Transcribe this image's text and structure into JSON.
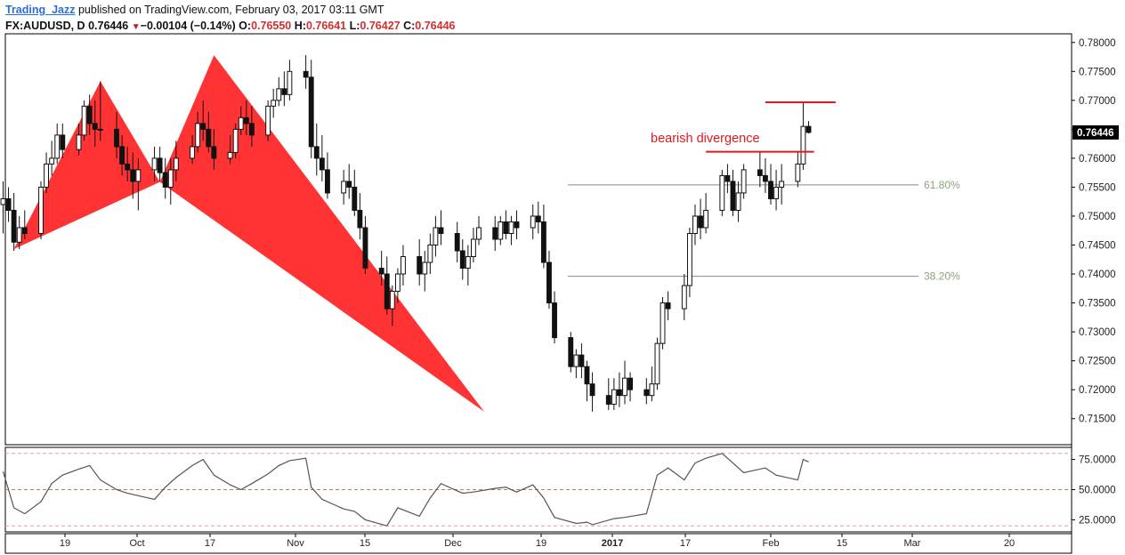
{
  "header": {
    "author": "Trading_Jazz",
    "published_text": "published on TradingView.com, February 03, 2017 03:11 GMT",
    "symbol": "FX:AUDUSD, D",
    "last": "0.76446",
    "change": "−0.00104 (−0.14%)",
    "o_label": "O:",
    "o": "0.76550",
    "h_label": "H:",
    "h": "0.76641",
    "l_label": "L:",
    "l": "0.76427",
    "c_label": "C:",
    "c": "0.76446"
  },
  "colors": {
    "harmonic_fill": "#ff3333",
    "level_line": "#e0191e",
    "fib_line": "#8a8a8a",
    "fib_text": "#8aa37a",
    "candle": "#111111",
    "rsi_line": "#555555",
    "rsi_band": "#e0a0a0",
    "rsi_mid": "#c87a3a"
  },
  "chart_data": [
    {
      "type": "candlestick",
      "title": "FX:AUDUSD, D",
      "y_ticks": [
        "0.78000",
        "0.77500",
        "0.77000",
        "0.76500",
        "0.76000",
        "0.75500",
        "0.75000",
        "0.74500",
        "0.74000",
        "0.73500",
        "0.73000",
        "0.72500",
        "0.72000",
        "0.71500"
      ],
      "ylim": [
        0.7105,
        0.7815
      ],
      "x_ticks": [
        "19",
        "Oct",
        "17",
        "Nov",
        "15",
        "Dec",
        "19",
        "2017",
        "17",
        "Feb",
        "15",
        "Mar",
        "20"
      ],
      "x_range": [
        "2016-09-12",
        "2017-03-26"
      ],
      "last_price_label": "0.76446",
      "annotations": {
        "text": "bearish divergence",
        "fib_levels": [
          {
            "label": "61.80%",
            "price": 0.7554
          },
          {
            "label": "38.20%",
            "price": 0.7396
          }
        ],
        "resistance_lines": [
          {
            "price": 0.76966,
            "from": "2017-01-31",
            "to": "2017-02-13"
          },
          {
            "price": 0.76112,
            "from": "2017-01-20",
            "to": "2017-02-09"
          }
        ],
        "harmonic_pattern_points": [
          {
            "date": "2016-09-14",
            "price": 0.7443
          },
          {
            "date": "2016-09-30",
            "price": 0.7733
          },
          {
            "date": "2016-10-11",
            "price": 0.7559
          },
          {
            "date": "2016-10-21",
            "price": 0.7778
          },
          {
            "date": "2016-12-10",
            "price": 0.7162
          }
        ]
      },
      "ohlc": [
        [
          "2016-09-12",
          0.752,
          0.756,
          0.747,
          0.753
        ],
        [
          "2016-09-13",
          0.753,
          0.755,
          0.749,
          0.751
        ],
        [
          "2016-09-14",
          0.751,
          0.754,
          0.744,
          0.7455
        ],
        [
          "2016-09-15",
          0.7455,
          0.75,
          0.7443,
          0.748
        ],
        [
          "2016-09-16",
          0.748,
          0.751,
          0.746,
          0.747
        ],
        [
          "2016-09-19",
          0.747,
          0.756,
          0.746,
          0.755
        ],
        [
          "2016-09-20",
          0.755,
          0.761,
          0.754,
          0.759
        ],
        [
          "2016-09-21",
          0.759,
          0.763,
          0.757,
          0.76
        ],
        [
          "2016-09-22",
          0.76,
          0.766,
          0.759,
          0.764
        ],
        [
          "2016-09-23",
          0.764,
          0.766,
          0.76,
          0.7615
        ],
        [
          "2016-09-26",
          0.7615,
          0.766,
          0.7605,
          0.764
        ],
        [
          "2016-09-27",
          0.764,
          0.77,
          0.763,
          0.769
        ],
        [
          "2016-09-28",
          0.769,
          0.771,
          0.764,
          0.766
        ],
        [
          "2016-09-29",
          0.766,
          0.77,
          0.762,
          0.765
        ],
        [
          "2016-09-30",
          0.765,
          0.7733,
          0.763,
          0.765
        ],
        [
          "2016-10-03",
          0.765,
          0.768,
          0.76,
          0.762
        ],
        [
          "2016-10-04",
          0.762,
          0.764,
          0.757,
          0.759
        ],
        [
          "2016-10-05",
          0.759,
          0.762,
          0.756,
          0.758
        ],
        [
          "2016-10-06",
          0.758,
          0.761,
          0.753,
          0.756
        ],
        [
          "2016-10-07",
          0.756,
          0.76,
          0.751,
          0.758
        ],
        [
          "2016-10-10",
          0.758,
          0.762,
          0.756,
          0.76
        ],
        [
          "2016-10-11",
          0.76,
          0.762,
          0.756,
          0.7575
        ],
        [
          "2016-10-12",
          0.7575,
          0.76,
          0.753,
          0.755
        ],
        [
          "2016-10-13",
          0.755,
          0.76,
          0.752,
          0.758
        ],
        [
          "2016-10-14",
          0.758,
          0.763,
          0.756,
          0.76
        ],
        [
          "2016-10-17",
          0.76,
          0.764,
          0.759,
          0.762
        ],
        [
          "2016-10-18",
          0.762,
          0.768,
          0.761,
          0.766
        ],
        [
          "2016-10-19",
          0.766,
          0.77,
          0.763,
          0.765
        ],
        [
          "2016-10-20",
          0.765,
          0.768,
          0.761,
          0.762
        ],
        [
          "2016-10-21",
          0.762,
          0.765,
          0.758,
          0.76
        ],
        [
          "2016-10-24",
          0.76,
          0.764,
          0.759,
          0.761
        ],
        [
          "2016-10-25",
          0.761,
          0.766,
          0.76,
          0.765
        ],
        [
          "2016-10-26",
          0.765,
          0.769,
          0.764,
          0.767
        ],
        [
          "2016-10-27",
          0.767,
          0.77,
          0.764,
          0.766
        ],
        [
          "2016-10-28",
          0.766,
          0.769,
          0.762,
          0.764
        ],
        [
          "2016-10-31",
          0.764,
          0.77,
          0.763,
          0.769
        ],
        [
          "2016-11-01",
          0.769,
          0.772,
          0.767,
          0.77
        ],
        [
          "2016-11-02",
          0.77,
          0.774,
          0.769,
          0.772
        ],
        [
          "2016-11-03",
          0.772,
          0.775,
          0.769,
          0.771
        ],
        [
          "2016-11-04",
          0.771,
          0.777,
          0.77,
          0.775
        ],
        [
          "2016-11-07",
          0.775,
          0.7778,
          0.772,
          0.774
        ],
        [
          "2016-11-08",
          0.774,
          0.777,
          0.76,
          0.762
        ],
        [
          "2016-11-09",
          0.762,
          0.766,
          0.757,
          0.76
        ],
        [
          "2016-11-10",
          0.76,
          0.764,
          0.756,
          0.758
        ],
        [
          "2016-11-11",
          0.758,
          0.761,
          0.753,
          0.754
        ],
        [
          "2016-11-14",
          0.754,
          0.758,
          0.752,
          0.756
        ],
        [
          "2016-11-15",
          0.756,
          0.759,
          0.753,
          0.755
        ],
        [
          "2016-11-16",
          0.755,
          0.758,
          0.75,
          0.751
        ],
        [
          "2016-11-17",
          0.751,
          0.754,
          0.746,
          0.748
        ],
        [
          "2016-11-18",
          0.748,
          0.75,
          0.74,
          0.741
        ],
        [
          "2016-11-21",
          0.741,
          0.744,
          0.738,
          0.74
        ],
        [
          "2016-11-22",
          0.74,
          0.743,
          0.733,
          0.734
        ],
        [
          "2016-11-23",
          0.734,
          0.738,
          0.731,
          0.737
        ],
        [
          "2016-11-24",
          0.737,
          0.741,
          0.735,
          0.74
        ],
        [
          "2016-11-25",
          0.74,
          0.745,
          0.738,
          0.743
        ],
        [
          "2016-11-28",
          0.743,
          0.746,
          0.738,
          0.74
        ],
        [
          "2016-11-29",
          0.74,
          0.744,
          0.737,
          0.742
        ],
        [
          "2016-11-30",
          0.742,
          0.747,
          0.74,
          0.745
        ],
        [
          "2016-12-01",
          0.745,
          0.75,
          0.743,
          0.748
        ],
        [
          "2016-12-02",
          0.748,
          0.751,
          0.745,
          0.747
        ],
        [
          "2016-12-05",
          0.747,
          0.749,
          0.742,
          0.744
        ],
        [
          "2016-12-06",
          0.744,
          0.746,
          0.739,
          0.741
        ],
        [
          "2016-12-07",
          0.741,
          0.745,
          0.738,
          0.743
        ],
        [
          "2016-12-08",
          0.743,
          0.748,
          0.742,
          0.746
        ],
        [
          "2016-12-09",
          0.746,
          0.75,
          0.745,
          0.748
        ],
        [
          "2016-12-12",
          0.748,
          0.75,
          0.744,
          0.746
        ],
        [
          "2016-12-13",
          0.746,
          0.75,
          0.745,
          0.749
        ],
        [
          "2016-12-14",
          0.749,
          0.751,
          0.746,
          0.747
        ],
        [
          "2016-12-15",
          0.747,
          0.75,
          0.745,
          0.749
        ],
        [
          "2016-12-16",
          0.749,
          0.751,
          0.746,
          0.748
        ],
        [
          "2016-12-19",
          0.748,
          0.752,
          0.746,
          0.75
        ],
        [
          "2016-12-20",
          0.75,
          0.7525,
          0.747,
          0.749
        ],
        [
          "2016-12-21",
          0.749,
          0.752,
          0.741,
          0.742
        ],
        [
          "2016-12-22",
          0.742,
          0.744,
          0.734,
          0.735
        ],
        [
          "2016-12-23",
          0.735,
          0.737,
          0.728,
          0.729
        ],
        [
          "2016-12-26",
          0.729,
          0.73,
          0.723,
          0.724
        ],
        [
          "2016-12-27",
          0.724,
          0.727,
          0.722,
          0.726
        ],
        [
          "2016-12-28",
          0.726,
          0.728,
          0.722,
          0.724
        ],
        [
          "2016-12-29",
          0.724,
          0.725,
          0.718,
          0.721
        ],
        [
          "2016-12-30",
          0.721,
          0.723,
          0.7162,
          0.719
        ],
        [
          "2017-01-02",
          0.719,
          0.722,
          0.7165,
          0.7175
        ],
        [
          "2017-01-03",
          0.7175,
          0.722,
          0.7165,
          0.72
        ],
        [
          "2017-01-04",
          0.72,
          0.723,
          0.717,
          0.719
        ],
        [
          "2017-01-05",
          0.719,
          0.725,
          0.7175,
          0.722
        ],
        [
          "2017-01-06",
          0.722,
          0.723,
          0.718,
          0.72
        ],
        [
          "2017-01-09",
          0.72,
          0.722,
          0.7175,
          0.719
        ],
        [
          "2017-01-10",
          0.719,
          0.724,
          0.718,
          0.721
        ],
        [
          "2017-01-11",
          0.721,
          0.729,
          0.72,
          0.728
        ],
        [
          "2017-01-12",
          0.728,
          0.736,
          0.727,
          0.735
        ],
        [
          "2017-01-13",
          0.735,
          0.737,
          0.732,
          0.734
        ],
        [
          "2017-01-16",
          0.734,
          0.74,
          0.732,
          0.738
        ],
        [
          "2017-01-17",
          0.738,
          0.748,
          0.736,
          0.747
        ],
        [
          "2017-01-18",
          0.747,
          0.752,
          0.745,
          0.75
        ],
        [
          "2017-01-19",
          0.75,
          0.753,
          0.746,
          0.748
        ],
        [
          "2017-01-20",
          0.748,
          0.754,
          0.747,
          0.751
        ],
        [
          "2017-01-23",
          0.751,
          0.758,
          0.75,
          0.757
        ],
        [
          "2017-01-24",
          0.757,
          0.759,
          0.754,
          0.756
        ],
        [
          "2017-01-25",
          0.756,
          0.758,
          0.75,
          0.751
        ],
        [
          "2017-01-26",
          0.751,
          0.756,
          0.749,
          0.754
        ],
        [
          "2017-01-27",
          0.754,
          0.759,
          0.753,
          0.758
        ],
        [
          "2017-01-30",
          0.758,
          0.761,
          0.755,
          0.757
        ],
        [
          "2017-01-31",
          0.757,
          0.76,
          0.754,
          0.756
        ],
        [
          "2017-02-01",
          0.756,
          0.759,
          0.752,
          0.753
        ],
        [
          "2017-02-02",
          0.753,
          0.758,
          0.751,
          0.755
        ],
        [
          "2017-02-03",
          0.755,
          0.759,
          0.752,
          0.756
        ],
        [
          "2017-02-06",
          0.756,
          0.761,
          0.755,
          0.759
        ],
        [
          "2017-02-07",
          0.759,
          0.7697,
          0.758,
          0.7655
        ],
        [
          "2017-02-08",
          0.7655,
          0.76641,
          0.76427,
          0.76446
        ]
      ]
    },
    {
      "type": "line",
      "title": "RSI",
      "y_ticks": [
        "75.0000",
        "50.0000",
        "25.0000"
      ],
      "ylim": [
        15,
        85
      ],
      "bands": {
        "upper": 80,
        "mid": 50,
        "lower": 20
      },
      "series": [
        {
          "dates": [
            "2016-09-12",
            "2016-09-14",
            "2016-09-16",
            "2016-09-19",
            "2016-09-21",
            "2016-09-23",
            "2016-09-26",
            "2016-09-28",
            "2016-09-30",
            "2016-10-03",
            "2016-10-05",
            "2016-10-07",
            "2016-10-10",
            "2016-10-12",
            "2016-10-14",
            "2016-10-17",
            "2016-10-19",
            "2016-10-21",
            "2016-10-24",
            "2016-10-26",
            "2016-10-28",
            "2016-10-31",
            "2016-11-02",
            "2016-11-04",
            "2016-11-07",
            "2016-11-08",
            "2016-11-10",
            "2016-11-14",
            "2016-11-16",
            "2016-11-18",
            "2016-11-22",
            "2016-11-24",
            "2016-11-28",
            "2016-11-30",
            "2016-12-02",
            "2016-12-06",
            "2016-12-08",
            "2016-12-12",
            "2016-12-14",
            "2016-12-16",
            "2016-12-19",
            "2016-12-21",
            "2016-12-23",
            "2016-12-27",
            "2016-12-29",
            "2016-12-30",
            "2017-01-03",
            "2017-01-05",
            "2017-01-09",
            "2017-01-11",
            "2017-01-13",
            "2017-01-16",
            "2017-01-18",
            "2017-01-20",
            "2017-01-23",
            "2017-01-25",
            "2017-01-27",
            "2017-01-31",
            "2017-02-02",
            "2017-02-06",
            "2017-02-07",
            "2017-02-08"
          ],
          "values": [
            65,
            35,
            30,
            40,
            55,
            62,
            67,
            70,
            58,
            50,
            47,
            45,
            42,
            52,
            60,
            70,
            75,
            62,
            54,
            50,
            55,
            63,
            70,
            74,
            76,
            52,
            42,
            34,
            32,
            25,
            20,
            35,
            28,
            43,
            55,
            47,
            48,
            51,
            52,
            48,
            54,
            43,
            27,
            22,
            23,
            21,
            26,
            27,
            30,
            62,
            68,
            58,
            72,
            76,
            80,
            72,
            64,
            68,
            62,
            58,
            75,
            73
          ]
        }
      ]
    }
  ]
}
